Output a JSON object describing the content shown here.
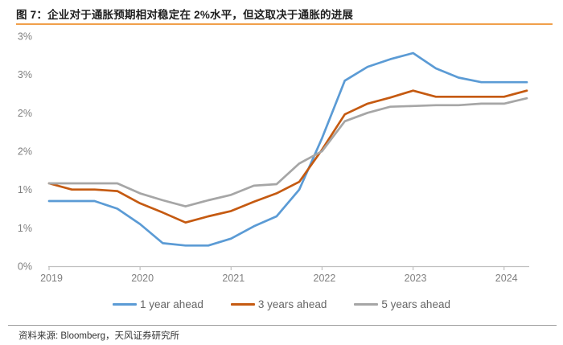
{
  "header": {
    "title": "图 7：企业对于通胀预期相对稳定在 2%水平，但这取决于通胀的进展"
  },
  "footer": {
    "source": "资料来源: Bloomberg，天风证券研究所"
  },
  "colors": {
    "title_rule": "#f0a04b",
    "axis_line": "#bfbfbf",
    "tick_label": "#7f7f7f",
    "series_blue": "#5b9bd5",
    "series_orange": "#c55a11",
    "series_gray": "#a6a6a6"
  },
  "chart_data": {
    "type": "line",
    "title": "",
    "xlabel": "",
    "ylabel": "",
    "grid": false,
    "legend_position": "bottom",
    "ylim": [
      0,
      3
    ],
    "x": [
      "2019Q1",
      "2019Q2",
      "2019Q3",
      "2019Q4",
      "2020Q1",
      "2020Q2",
      "2020Q3",
      "2020Q4",
      "2021Q1",
      "2021Q2",
      "2021Q3",
      "2021Q4",
      "2022Q1",
      "2022Q2",
      "2022Q3",
      "2022Q4",
      "2023Q1",
      "2023Q2",
      "2023Q3",
      "2023Q4",
      "2024Q1",
      "2024Q2"
    ],
    "x_ticks": [
      {
        "label": "2019",
        "index": 0
      },
      {
        "label": "2020",
        "index": 4
      },
      {
        "label": "2021",
        "index": 8
      },
      {
        "label": "2022",
        "index": 12
      },
      {
        "label": "2023",
        "index": 16
      },
      {
        "label": "2024",
        "index": 20
      }
    ],
    "y_ticks": [
      {
        "label": "0%",
        "value": 0
      },
      {
        "label": "1%",
        "value": 0.5
      },
      {
        "label": "1%",
        "value": 1
      },
      {
        "label": "2%",
        "value": 1.5
      },
      {
        "label": "2%",
        "value": 2
      },
      {
        "label": "3%",
        "value": 2.5
      },
      {
        "label": "3%",
        "value": 3
      }
    ],
    "series": [
      {
        "name": "1 year ahead",
        "color": "#5b9bd5",
        "values": [
          0.85,
          0.85,
          0.85,
          0.75,
          0.55,
          0.3,
          0.27,
          0.27,
          0.36,
          0.52,
          0.65,
          1.0,
          1.67,
          2.42,
          2.6,
          2.7,
          2.78,
          2.58,
          2.46,
          2.4,
          2.4,
          2.4
        ]
      },
      {
        "name": "3 years ahead",
        "color": "#c55a11",
        "values": [
          1.08,
          1.0,
          1.0,
          0.98,
          0.82,
          0.7,
          0.57,
          0.65,
          0.72,
          0.84,
          0.95,
          1.1,
          1.52,
          1.98,
          2.12,
          2.2,
          2.29,
          2.21,
          2.21,
          2.21,
          2.21,
          2.29
        ]
      },
      {
        "name": "5 years ahead",
        "color": "#a6a6a6",
        "values": [
          1.08,
          1.08,
          1.08,
          1.08,
          0.95,
          0.86,
          0.78,
          0.86,
          0.93,
          1.05,
          1.07,
          1.34,
          1.5,
          1.89,
          2.0,
          2.08,
          2.09,
          2.1,
          2.1,
          2.12,
          2.12,
          2.19
        ]
      }
    ]
  }
}
